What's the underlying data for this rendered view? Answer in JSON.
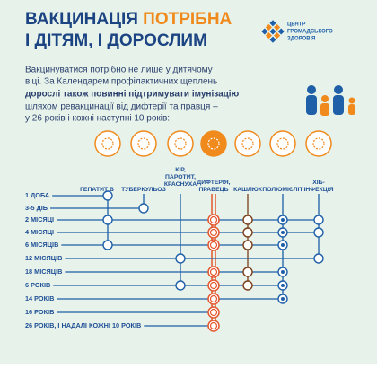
{
  "header": {
    "title_part1": "ВАКЦИНАЦІЯ",
    "title_part2": "ПОТРІБНА",
    "title_line2": "І ДІТЯМ, І ДОРОСЛИМ",
    "logo_lines": [
      "ЦЕНТР",
      "ГРОМАДСЬКОГО",
      "ЗДОРОВ'Я"
    ]
  },
  "intro": {
    "lines": [
      "Вакцинуватися потрібно не лише у дитячому",
      "віці. За Календарем профілактичних щеплень",
      "дорослі також повинні підтримувати імунізацію",
      "шляхом ревакцинації від дифтерії та правця –",
      "у 26 років і кожні наступні 10 років:"
    ]
  },
  "schedule": {
    "columns": [
      {
        "label": [
          "ГЕПАТИТ В"
        ]
      },
      {
        "label": [
          "ТУБЕРКУЛЬОЗ"
        ]
      },
      {
        "label": [
          "КІР,",
          "ПАРОТИТ,",
          "КРАСНУХА"
        ]
      },
      {
        "label": [
          "ДИФТЕРІЯ,",
          "ПРАВЕЦЬ"
        ]
      },
      {
        "label": [
          "КАШЛЮК"
        ]
      },
      {
        "label": [
          "ПОЛІОМІЄЛІТ"
        ]
      },
      {
        "label": [
          "ХІБ-",
          "ІНФЕКЦІЯ"
        ]
      }
    ],
    "rows": [
      "1 ДОБА",
      "3-5 ДІБ",
      "2 МІСЯЦІ",
      "4 МІСЯЦІ",
      "6 МІСЯЦІВ",
      "12 МІСЯЦІВ",
      "18 МІСЯЦІВ",
      "6 РОКІВ",
      "14 РОКІВ",
      "16 РОКІВ",
      "26 РОКІВ, І НАДАЛІ КОЖНІ 10 РОКІВ"
    ]
  }
}
